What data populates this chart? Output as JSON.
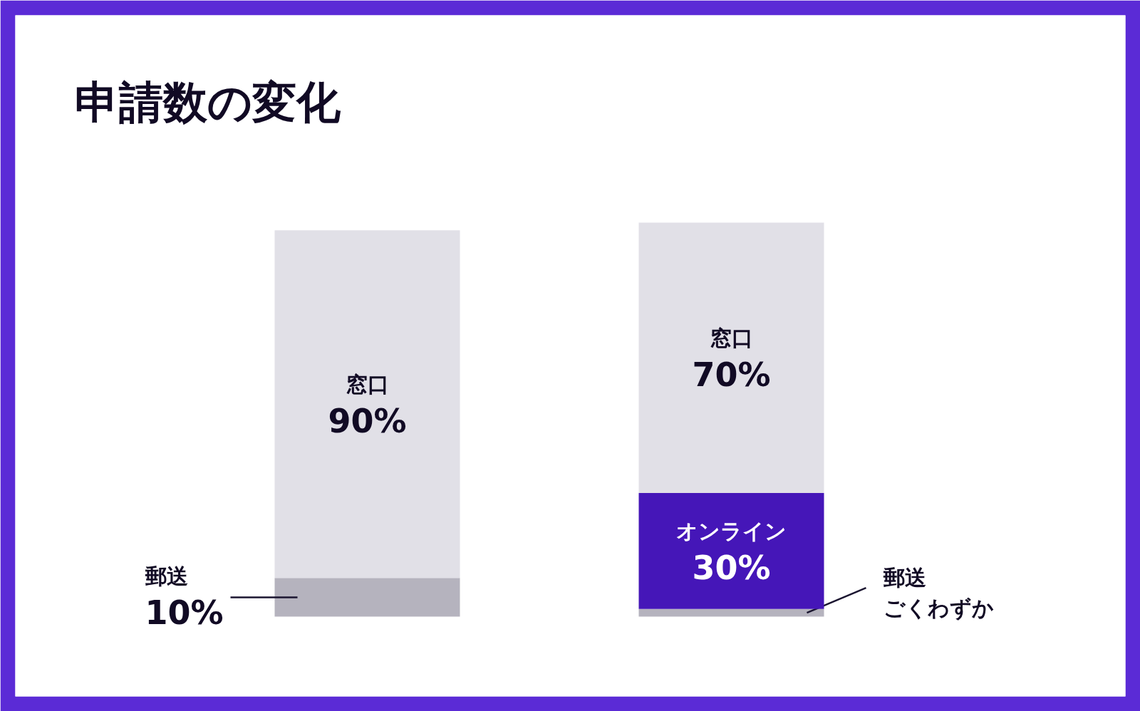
{
  "chart_data": {
    "type": "bar",
    "title": "申請数の変化",
    "categories": [
      null,
      null
    ],
    "stacked": true,
    "series": [
      {
        "name": "郵送",
        "color": "#b5b3be",
        "values": [
          10,
          2
        ],
        "value_labels": [
          "10%",
          "ごくわずか"
        ]
      },
      {
        "name": "オンライン",
        "color": "#4516b8",
        "values": [
          null,
          30
        ],
        "value_labels": [
          null,
          "30%"
        ]
      },
      {
        "name": "窓口",
        "color": "#e1e0e7",
        "values": [
          90,
          70
        ],
        "value_labels": [
          "90%",
          "70%"
        ]
      }
    ]
  }
}
